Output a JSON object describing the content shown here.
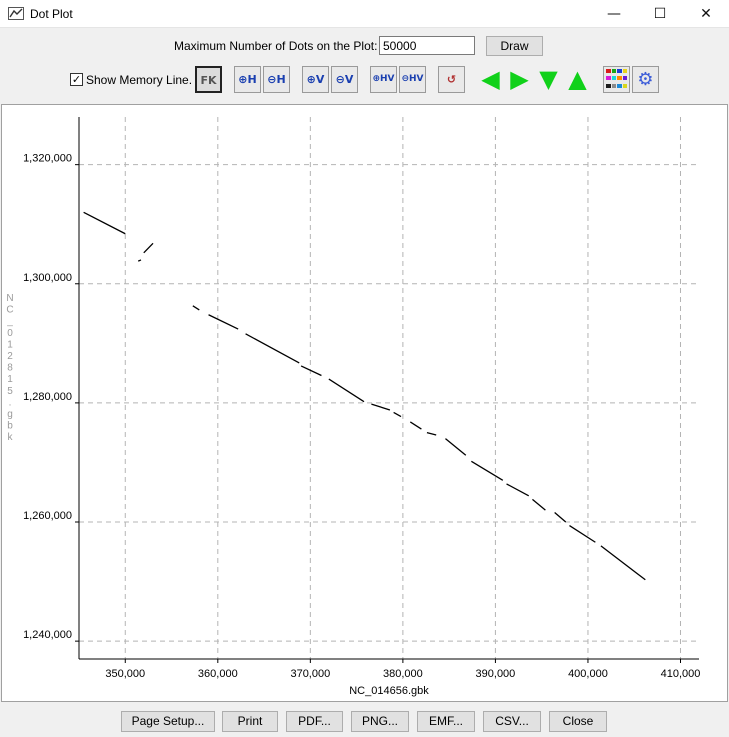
{
  "window": {
    "title": "Dot Plot",
    "minimize_glyph": "—",
    "maximize_glyph": "☐",
    "close_glyph": "✕"
  },
  "controls": {
    "max_dots_label": "Maximum Number of Dots on the Plot:",
    "max_dots_value": "50000",
    "draw_label": "Draw",
    "show_memory_line_label": "Show Memory Line.",
    "show_memory_line_checked": true,
    "check_glyph": "✓"
  },
  "toolbar": [
    {
      "name": "fk-toggle-button",
      "text": "FK"
    },
    {
      "name": "zoom-in-h-button",
      "text": "⊕H"
    },
    {
      "name": "zoom-out-h-button",
      "text": "⊖H"
    },
    {
      "name": "zoom-in-v-button",
      "text": "⊕V"
    },
    {
      "name": "zoom-out-v-button",
      "text": "⊖V"
    },
    {
      "name": "zoom-in-hv-button",
      "text": "⊕HV"
    },
    {
      "name": "zoom-out-hv-button",
      "text": "⊖HV"
    },
    {
      "name": "reset-view-button",
      "text": "↺"
    },
    {
      "name": "pan-left-button",
      "text": "◀"
    },
    {
      "name": "pan-right-button",
      "text": "▶"
    },
    {
      "name": "pan-down-button",
      "text": "▼"
    },
    {
      "name": "pan-up-button",
      "text": "▲"
    },
    {
      "name": "color-settings-button",
      "text": ""
    },
    {
      "name": "settings-gear-button",
      "text": "⚙"
    }
  ],
  "palette_colors": [
    "#d81b1b",
    "#1aa51a",
    "#1b3fd8",
    "#e8d21a",
    "#d81bd8",
    "#1ad8d8",
    "#ff8a00",
    "#6a1bd8",
    "#1b1b1b",
    "#8a8a8a",
    "#1b8ad8",
    "#d8d81b"
  ],
  "chart_data": {
    "type": "scatter",
    "title": "",
    "xlabel": "NC_014656.gbk",
    "ylabel": "NC_012815.gbk",
    "xlim": [
      345000,
      412000
    ],
    "ylim": [
      1237000,
      1328000
    ],
    "xticks": [
      350000,
      360000,
      370000,
      380000,
      390000,
      400000,
      410000
    ],
    "yticks": [
      1240000,
      1260000,
      1280000,
      1300000,
      1320000
    ],
    "xtick_labels": [
      "350,000",
      "360,000",
      "370,000",
      "380,000",
      "390,000",
      "400,000",
      "410,000"
    ],
    "ytick_labels": [
      "1,240,000",
      "1,260,000",
      "1,280,000",
      "1,300,000",
      "1,320,000"
    ],
    "grid": true,
    "series": [
      {
        "color": "#000000",
        "segments": [
          [
            [
              345500,
              1312000
            ],
            [
              350000,
              1308400
            ]
          ],
          [
            [
              351400,
              1303800
            ],
            [
              351700,
              1304000
            ]
          ],
          [
            [
              352000,
              1305200
            ],
            [
              353000,
              1306800
            ]
          ],
          [
            [
              357300,
              1296300
            ],
            [
              358000,
              1295600
            ]
          ],
          [
            [
              359000,
              1294800
            ],
            [
              362200,
              1292400
            ]
          ],
          [
            [
              363000,
              1291600
            ],
            [
              368800,
              1286700
            ]
          ],
          [
            [
              369000,
              1286200
            ],
            [
              371200,
              1284600
            ]
          ],
          [
            [
              372000,
              1284000
            ],
            [
              375800,
              1280200
            ]
          ],
          [
            [
              376600,
              1279800
            ],
            [
              378600,
              1278800
            ]
          ],
          [
            [
              379000,
              1278400
            ],
            [
              379800,
              1277700
            ]
          ],
          [
            [
              380800,
              1276800
            ],
            [
              382000,
              1275600
            ]
          ],
          [
            [
              382600,
              1275000
            ],
            [
              383600,
              1274600
            ]
          ],
          [
            [
              384600,
              1274000
            ],
            [
              386800,
              1271200
            ]
          ],
          [
            [
              387400,
              1270200
            ],
            [
              390800,
              1267000
            ]
          ],
          [
            [
              391200,
              1266400
            ],
            [
              393600,
              1264400
            ]
          ],
          [
            [
              394000,
              1263800
            ],
            [
              395400,
              1262000
            ]
          ],
          [
            [
              396400,
              1261600
            ],
            [
              397600,
              1260000
            ]
          ],
          [
            [
              398000,
              1259400
            ],
            [
              400800,
              1256600
            ]
          ],
          [
            [
              401400,
              1256000
            ],
            [
              406200,
              1250300
            ]
          ]
        ]
      }
    ]
  },
  "bottom_buttons": [
    "Page Setup...",
    "Print",
    "PDF...",
    "PNG...",
    "EMF...",
    "CSV...",
    "Close"
  ]
}
